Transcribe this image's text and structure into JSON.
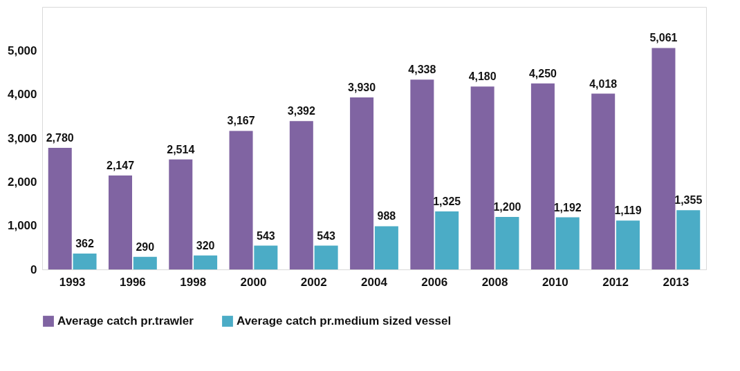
{
  "chart_data": {
    "type": "bar",
    "categories": [
      "1993",
      "1996",
      "1998",
      "2000",
      "2002",
      "2004",
      "2006",
      "2008",
      "2010",
      "2012",
      "2013"
    ],
    "series": [
      {
        "name": "Average catch pr.trawler",
        "color": "#8064a2",
        "values": [
          2780,
          2147,
          2514,
          3167,
          3392,
          3930,
          4338,
          4180,
          4250,
          4018,
          5061
        ],
        "value_labels": [
          "2,780",
          "2,147",
          "2,514",
          "3,167",
          "3,392",
          "3,930",
          "4,338",
          "4,180",
          "4,250",
          "4,018",
          "5,061"
        ]
      },
      {
        "name": "Average catch pr.medium sized vessel",
        "color": "#4bacc6",
        "values": [
          362,
          290,
          320,
          543,
          543,
          988,
          1325,
          1200,
          1192,
          1119,
          1355
        ],
        "value_labels": [
          "362",
          "290",
          "320",
          "543",
          "543",
          "988",
          "1,325",
          "1,200",
          "1,192",
          "1,119",
          "1,355"
        ]
      }
    ],
    "ylim": [
      0,
      6000
    ],
    "yticks": [
      0,
      {
        "value": 1000,
        "label": "1,000"
      },
      {
        "value": 2000,
        "label": "2,000"
      },
      {
        "value": 3000,
        "label": "3,000"
      },
      {
        "value": 4000,
        "label": "4,000"
      },
      {
        "value": 5000,
        "label": "5,000"
      }
    ],
    "grid": false,
    "legend": "bottom"
  }
}
